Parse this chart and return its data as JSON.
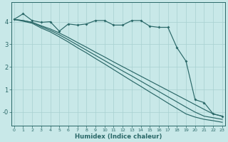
{
  "xlabel": "Humidex (Indice chaleur)",
  "bg_color": "#c8e8e8",
  "grid_color": "#a8d0d0",
  "line_color": "#2a6868",
  "tick_color": "#2a6868",
  "x_values": [
    0,
    1,
    2,
    3,
    4,
    5,
    6,
    7,
    8,
    9,
    10,
    11,
    12,
    13,
    14,
    15,
    16,
    17,
    18,
    19,
    20,
    21,
    22,
    23
  ],
  "ylim": [
    -0.6,
    4.85
  ],
  "xlim": [
    -0.3,
    23.3
  ],
  "line_wavy": [
    4.1,
    4.35,
    4.05,
    3.97,
    4.0,
    3.58,
    3.9,
    3.85,
    3.9,
    4.05,
    4.05,
    3.85,
    3.85,
    4.05,
    4.05,
    3.8,
    3.75,
    3.75,
    2.85,
    2.25,
    0.55,
    0.42,
    -0.08,
    -0.18
  ],
  "line_a": [
    4.1,
    4.05,
    3.97,
    3.82,
    3.68,
    3.5,
    3.3,
    3.08,
    2.87,
    2.65,
    2.44,
    2.22,
    2.01,
    1.8,
    1.59,
    1.38,
    1.17,
    0.96,
    0.75,
    0.54,
    0.33,
    0.12,
    -0.08,
    -0.18
  ],
  "line_b": [
    4.1,
    4.05,
    3.97,
    3.78,
    3.62,
    3.42,
    3.2,
    2.97,
    2.74,
    2.51,
    2.28,
    2.05,
    1.82,
    1.6,
    1.37,
    1.14,
    0.91,
    0.68,
    0.45,
    0.22,
    0.0,
    -0.18,
    -0.25,
    -0.32
  ],
  "line_c": [
    4.1,
    4.02,
    3.93,
    3.72,
    3.55,
    3.33,
    3.1,
    2.85,
    2.62,
    2.37,
    2.13,
    1.88,
    1.63,
    1.38,
    1.14,
    0.89,
    0.65,
    0.4,
    0.16,
    -0.08,
    -0.22,
    -0.32,
    -0.38,
    -0.45
  ],
  "y_ticks": [
    0,
    1,
    2,
    3,
    4
  ],
  "y_tick_labels": [
    "-0",
    "1",
    "2",
    "3",
    "4"
  ]
}
